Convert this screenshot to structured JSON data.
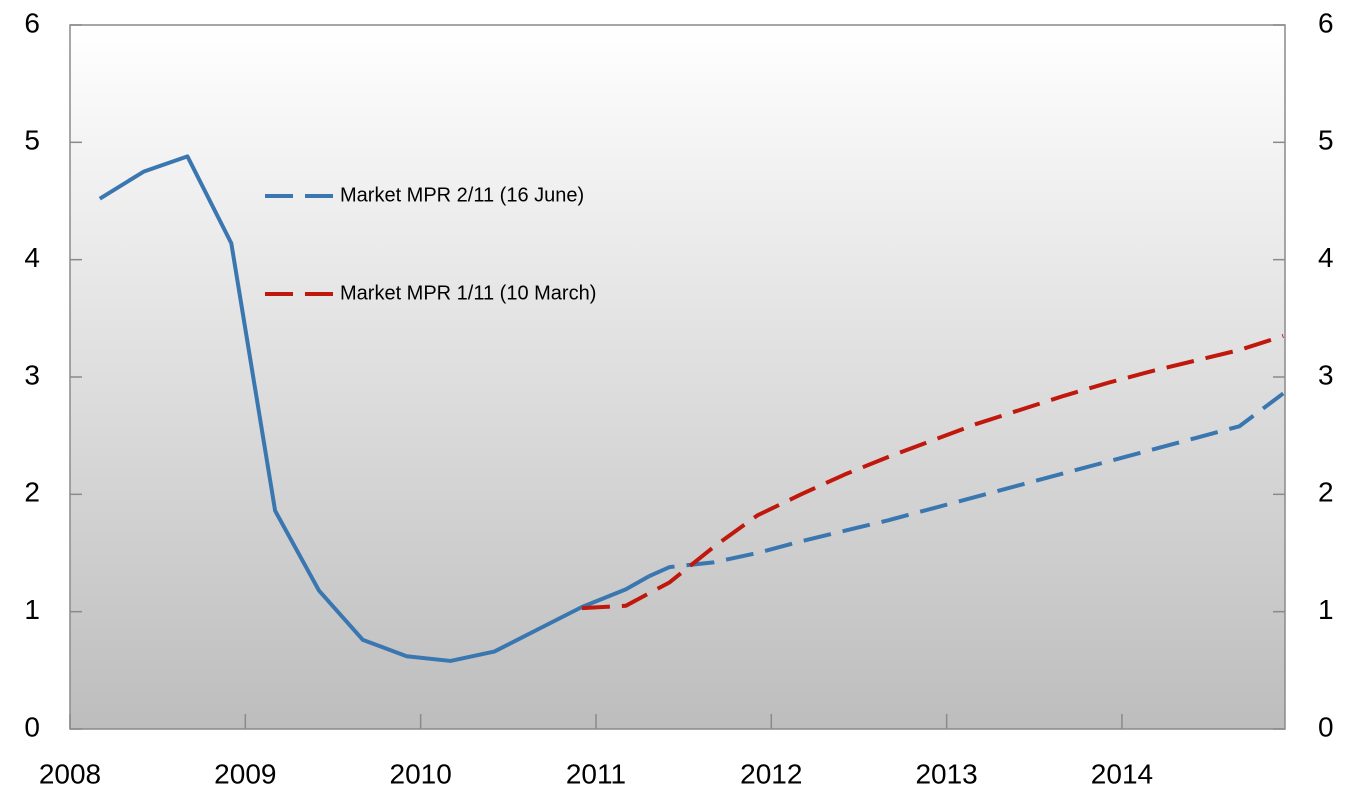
{
  "chart_data": {
    "type": "line",
    "xlim": [
      2008,
      2014.93
    ],
    "xticks": [
      2008,
      2009,
      2010,
      2011,
      2012,
      2013,
      2014
    ],
    "ylim": [
      0,
      6
    ],
    "yticks": [
      0,
      1,
      2,
      3,
      4,
      5,
      6
    ],
    "y2lim": [
      0,
      6
    ],
    "y2ticks": [
      0,
      1,
      2,
      3,
      4,
      5,
      6
    ],
    "legend": "upper-left",
    "series": [
      {
        "color": "#3a77b0",
        "dash": false,
        "x": [
          2008.17,
          2008.42,
          2008.67,
          2008.92,
          2009.17,
          2009.42,
          2009.67,
          2009.92,
          2010.17,
          2010.42,
          2010.67,
          2010.92,
          2011.17,
          2011.3
        ],
        "values": [
          4.52,
          4.75,
          4.88,
          4.14,
          1.86,
          1.18,
          0.76,
          0.62,
          0.58,
          0.66,
          0.85,
          1.04,
          1.19,
          1.3
        ]
      },
      {
        "name": "Market MPR 2/11 (16 June)",
        "color": "#3a77b0",
        "dash": true,
        "x": [
          2011.3,
          2011.42,
          2011.67,
          2011.92,
          2012.17,
          2012.42,
          2012.67,
          2012.92,
          2013.17,
          2013.42,
          2013.67,
          2013.92,
          2014.17,
          2014.42,
          2014.67,
          2014.92
        ],
        "values": [
          1.3,
          1.38,
          1.42,
          1.5,
          1.6,
          1.69,
          1.78,
          1.88,
          1.98,
          2.08,
          2.18,
          2.28,
          2.38,
          2.48,
          2.58,
          2.86
        ]
      },
      {
        "name": "Market MPR 1/11 (10 March)",
        "color": "#c0180c",
        "dash": true,
        "x": [
          2010.92,
          2011.17,
          2011.42,
          2011.67,
          2011.92,
          2012.17,
          2012.42,
          2012.67,
          2012.92,
          2013.17,
          2013.42,
          2013.67,
          2013.92,
          2014.17,
          2014.42,
          2014.67,
          2014.92
        ],
        "values": [
          1.03,
          1.05,
          1.25,
          1.55,
          1.82,
          2.0,
          2.17,
          2.32,
          2.46,
          2.6,
          2.72,
          2.84,
          2.95,
          3.05,
          3.14,
          3.23,
          3.35
        ]
      }
    ]
  }
}
